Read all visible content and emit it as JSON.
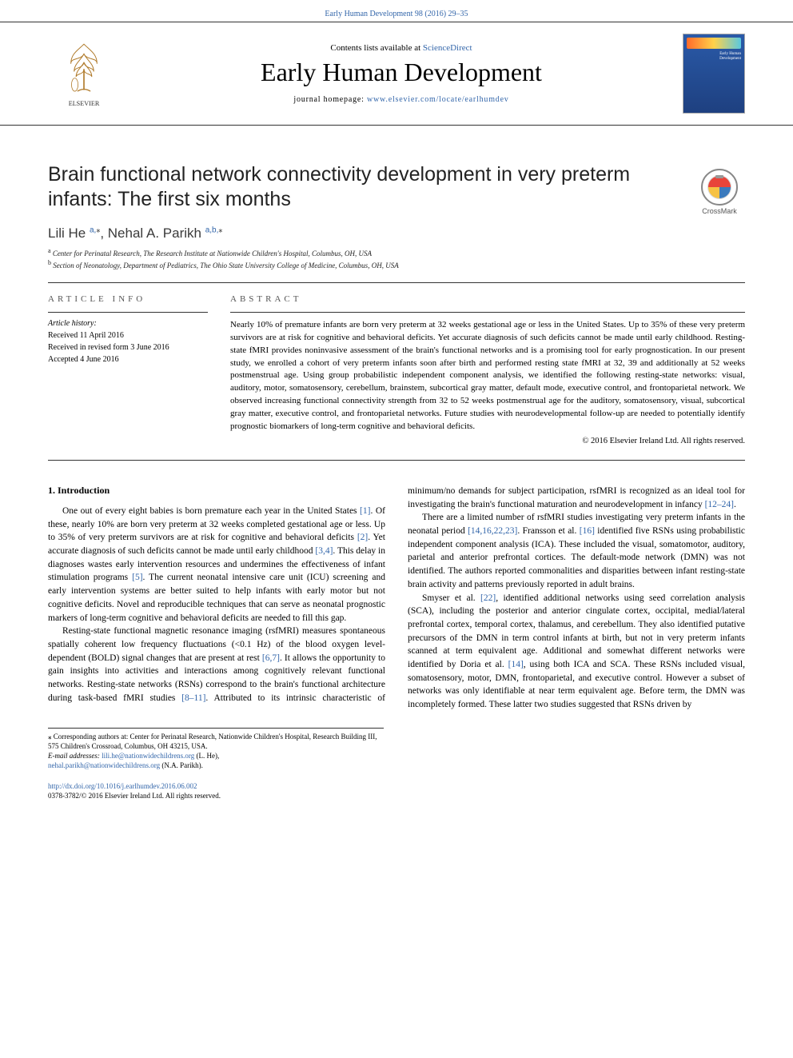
{
  "colors": {
    "link": "#3366aa",
    "text": "#000000",
    "rule": "#333333",
    "cover_gradient": [
      "#2a5aa8",
      "#1e4080"
    ]
  },
  "header": {
    "citation": "Early Human Development 98 (2016) 29–35",
    "contents_prefix": "Contents lists available at ",
    "contents_link_text": "ScienceDirect",
    "journal_title": "Early Human Development",
    "homepage_prefix": "journal homepage: ",
    "homepage_link": "www.elsevier.com/locate/earlhumdev",
    "publisher_name": "ELSEVIER"
  },
  "article": {
    "title": "Brain functional network connectivity development in very preterm infants: The first six months",
    "crossmark_label": "CrossMark"
  },
  "authors": [
    {
      "name": "Lili He",
      "affil_marks": "a,",
      "is_corresponding": true
    },
    {
      "name": "Nehal A. Parikh",
      "affil_marks": "a,b,",
      "is_corresponding": true
    }
  ],
  "affiliations": [
    {
      "mark": "a",
      "text": "Center for Perinatal Research, The Research Institute at Nationwide Children's Hospital, Columbus, OH, USA"
    },
    {
      "mark": "b",
      "text": "Section of Neonatology, Department of Pediatrics, The Ohio State University College of Medicine, Columbus, OH, USA"
    }
  ],
  "article_info": {
    "heading": "article info",
    "history_label": "Article history:",
    "dates": [
      "Received 11 April 2016",
      "Received in revised form 3 June 2016",
      "Accepted 4 June 2016"
    ]
  },
  "abstract": {
    "heading": "abstract",
    "text": "Nearly 10% of premature infants are born very preterm at 32 weeks gestational age or less in the United States. Up to 35% of these very preterm survivors are at risk for cognitive and behavioral deficits. Yet accurate diagnosis of such deficits cannot be made until early childhood. Resting-state fMRI provides noninvasive assessment of the brain's functional networks and is a promising tool for early prognostication. In our present study, we enrolled a cohort of very preterm infants soon after birth and performed resting state fMRI at 32, 39 and additionally at 52 weeks postmenstrual age. Using group probabilistic independent component analysis, we identified the following resting-state networks: visual, auditory, motor, somatosensory, cerebellum, brainstem, subcortical gray matter, default mode, executive control, and frontoparietal network. We observed increasing functional connectivity strength from 32 to 52 weeks postmenstrual age for the auditory, somatosensory, visual, subcortical gray matter, executive control, and frontoparietal networks. Future studies with neurodevelopmental follow-up are needed to potentially identify prognostic biomarkers of long-term cognitive and behavioral deficits.",
    "copyright": "© 2016 Elsevier Ireland Ltd. All rights reserved."
  },
  "section1": {
    "heading": "1. Introduction",
    "paragraphs": [
      "One out of every eight babies is born premature each year in the United States [1]. Of these, nearly 10% are born very preterm at 32 weeks completed gestational age or less. Up to 35% of very preterm survivors are at risk for cognitive and behavioral deficits [2]. Yet accurate diagnosis of such deficits cannot be made until early childhood [3,4]. This delay in diagnoses wastes early intervention resources and undermines the effectiveness of infant stimulation programs [5]. The current neonatal intensive care unit (ICU) screening and early intervention systems are better suited to help infants with early motor but not cognitive deficits. Novel and reproducible techniques that can serve as neonatal prognostic markers of long-term cognitive and behavioral deficits are needed to fill this gap.",
      "Resting-state functional magnetic resonance imaging (rsfMRI) measures spontaneous spatially coherent low frequency fluctuations (<0.1 Hz) of the blood oxygen level-dependent (BOLD) signal changes that are present at rest [6,7]. It allows the opportunity to gain insights into activities and interactions among cognitively relevant functional networks. Resting-state networks (RSNs) correspond to the brain's functional architecture during task-based fMRI studies [8–11]. Attributed to its intrinsic characteristic of minimum/no demands for subject participation, rsfMRI is recognized as an ideal tool for investigating the brain's functional maturation and neurodevelopment in infancy [12–24].",
      "There are a limited number of rsfMRI studies investigating very preterm infants in the neonatal period [14,16,22,23]. Fransson et al. [16] identified five RSNs using probabilistic independent component analysis (ICA). These included the visual, somatomotor, auditory, parietal and anterior prefrontal cortices. The default-mode network (DMN) was not identified. The authors reported commonalities and disparities between infant resting-state brain activity and patterns previously reported in adult brains.",
      "Smyser et al. [22], identified additional networks using seed correlation analysis (SCA), including the posterior and anterior cingulate cortex, occipital, medial/lateral prefrontal cortex, temporal cortex, thalamus, and cerebellum. They also identified putative precursors of the DMN in term control infants at birth, but not in very preterm infants scanned at term equivalent age. Additional and somewhat different networks were identified by Doria et al. [14], using both ICA and SCA. These RSNs included visual, somatosensory, motor, DMN, frontoparietal, and executive control. However a subset of networks was only identifiable at near term equivalent age. Before term, the DMN was incompletely formed. These latter two studies suggested that RSNs driven by"
    ]
  },
  "footnotes": {
    "corresponding": "⁎ Corresponding authors at: Center for Perinatal Research, Nationwide Children's Hospital, Research Building III, 575 Children's Crossroad, Columbus, OH 43215, USA.",
    "email_label": "E-mail addresses:",
    "emails": [
      {
        "addr": "lili.he@nationwidechildrens.org",
        "person": "(L. He)"
      },
      {
        "addr": "nehal.parikh@nationwidechildrens.org",
        "person": "(N.A. Parikh)"
      }
    ]
  },
  "footer": {
    "doi": "http://dx.doi.org/10.1016/j.earlhumdev.2016.06.002",
    "issn_line": "0378-3782/© 2016 Elsevier Ireland Ltd. All rights reserved."
  }
}
